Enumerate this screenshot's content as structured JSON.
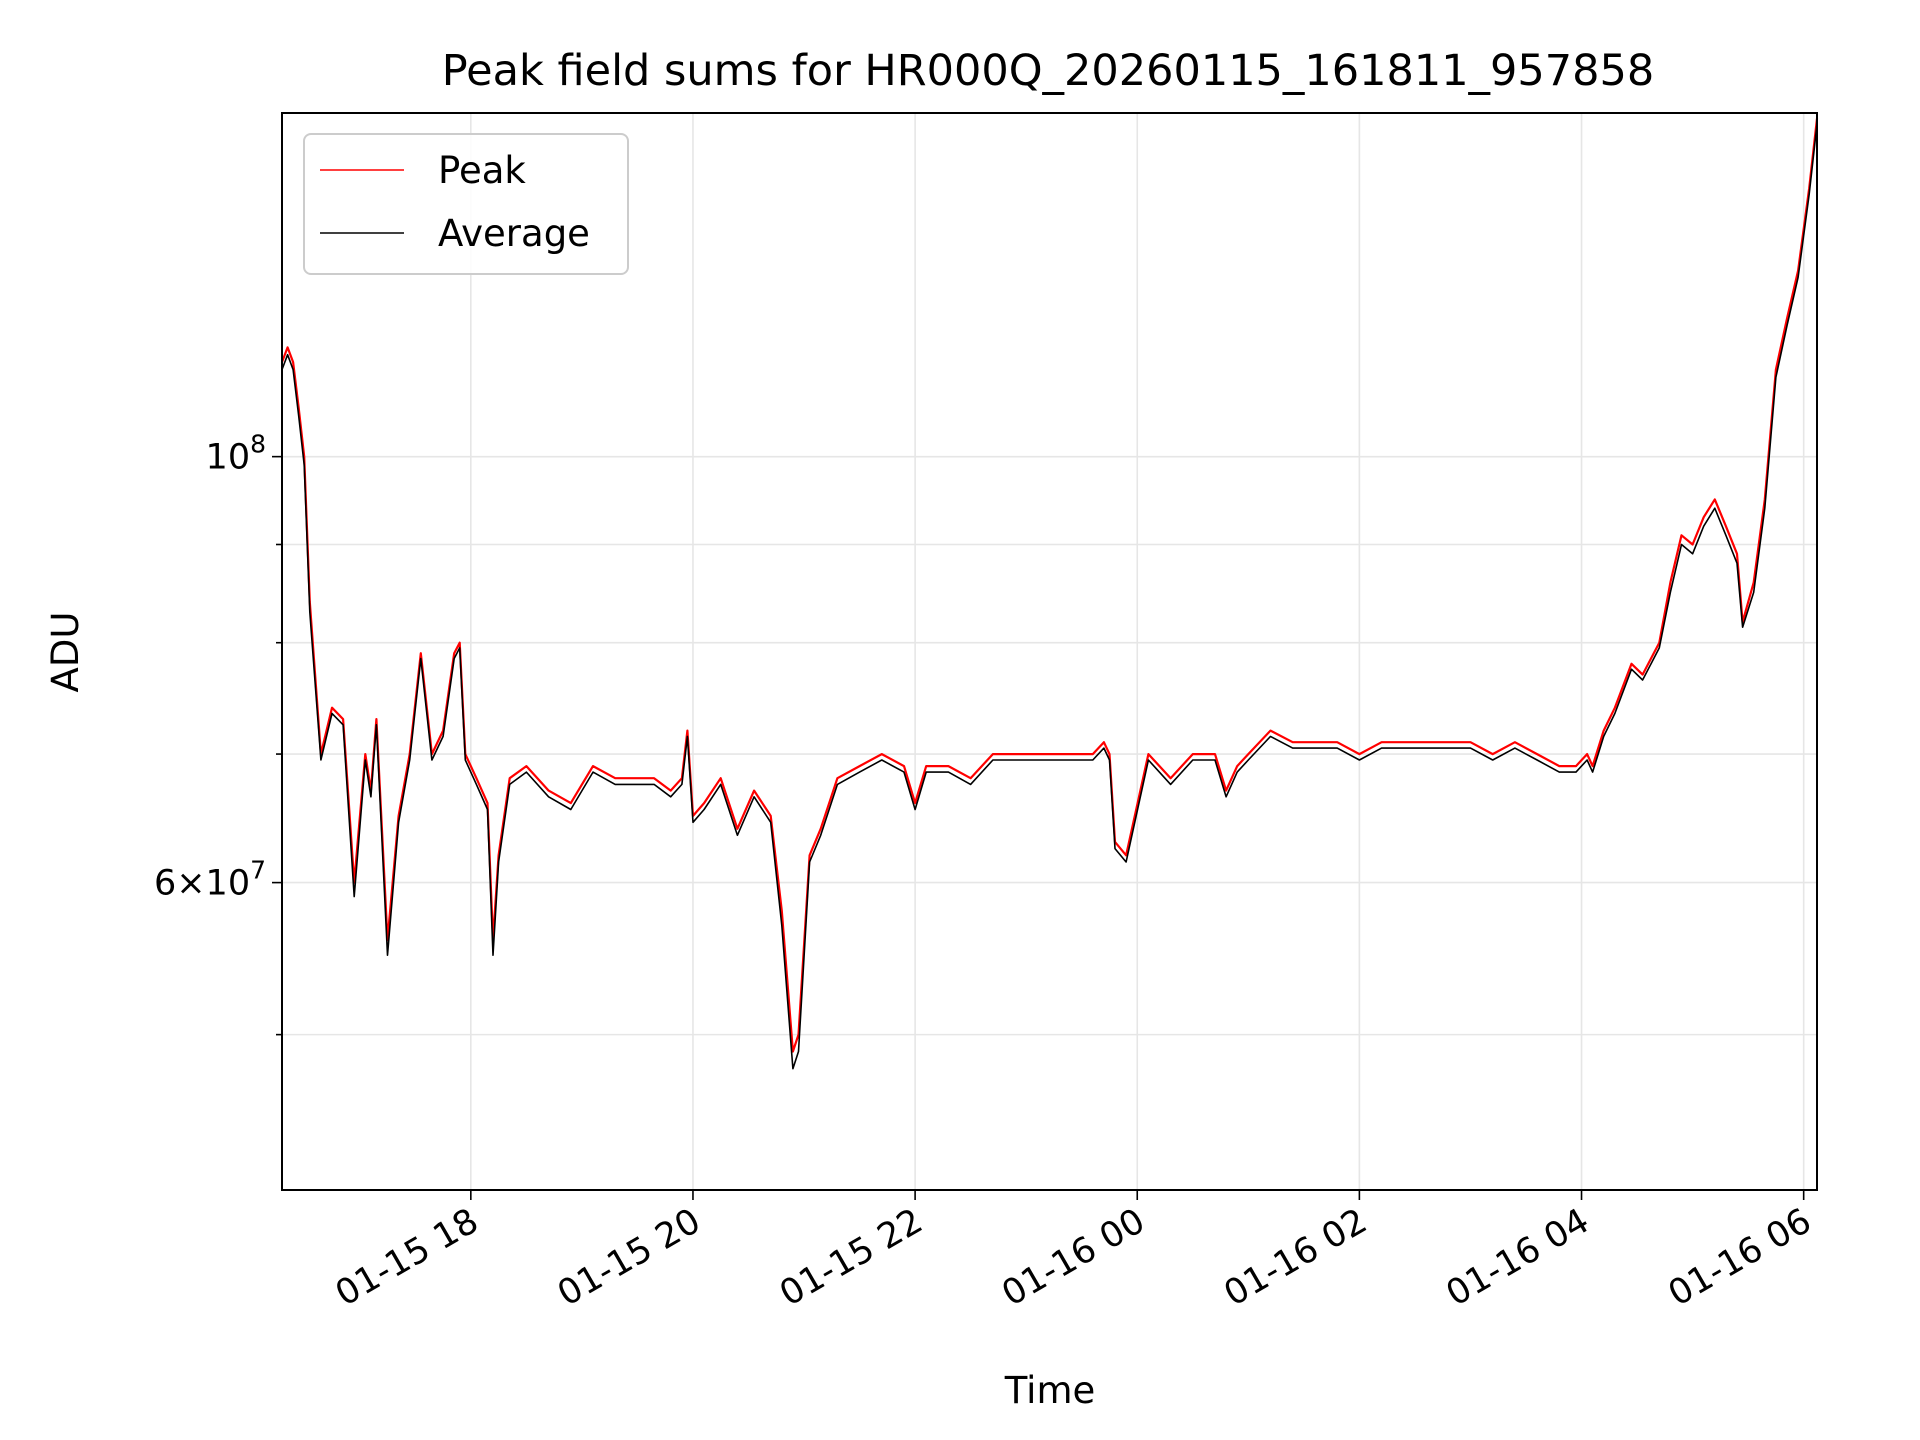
{
  "chart_data": {
    "type": "line",
    "title": "Peak field sums for HR000Q_20260115_161811_957858",
    "xlabel": "Time",
    "ylabel": "ADU",
    "yscale": "log",
    "ylim": [
      41500000,
      151000000
    ],
    "xlim": [
      16.3,
      30.12
    ],
    "x_unit": "hours since 2026-01-15 00:00",
    "x_ticks": [
      {
        "x": 18,
        "label": "01-15 18"
      },
      {
        "x": 20,
        "label": "01-15 20"
      },
      {
        "x": 22,
        "label": "01-15 22"
      },
      {
        "x": 24,
        "label": "01-16 00"
      },
      {
        "x": 26,
        "label": "01-16 02"
      },
      {
        "x": 28,
        "label": "01-16 04"
      },
      {
        "x": 30,
        "label": "01-16 06"
      }
    ],
    "y_major_ticks": [
      {
        "y": 100000000,
        "base": "10",
        "exp": "8",
        "mult": ""
      },
      {
        "y": 60000000,
        "base": "10",
        "exp": "7",
        "mult": "6"
      }
    ],
    "y_minor_ticks": [
      50000000,
      70000000,
      80000000,
      90000000,
      200000000
    ],
    "grid": true,
    "legend": {
      "position": "top-left",
      "entries": [
        {
          "name": "Peak",
          "color": "#ff0000"
        },
        {
          "name": "Average",
          "color": "#000000"
        }
      ]
    },
    "series": [
      {
        "name": "Peak",
        "color": "#ff0000",
        "x": [
          16.3,
          16.35,
          16.4,
          16.45,
          16.5,
          16.55,
          16.65,
          16.75,
          16.85,
          16.95,
          17.05,
          17.1,
          17.15,
          17.25,
          17.35,
          17.45,
          17.55,
          17.65,
          17.75,
          17.85,
          17.9,
          17.95,
          18.05,
          18.15,
          18.2,
          18.25,
          18.35,
          18.5,
          18.7,
          18.9,
          19.1,
          19.3,
          19.5,
          19.65,
          19.8,
          19.9,
          19.95,
          20.0,
          20.1,
          20.25,
          20.4,
          20.55,
          20.7,
          20.8,
          20.9,
          20.95,
          21.05,
          21.15,
          21.3,
          21.5,
          21.7,
          21.9,
          22.0,
          22.1,
          22.3,
          22.5,
          22.7,
          22.9,
          23.1,
          23.3,
          23.5,
          23.6,
          23.7,
          23.75,
          23.8,
          23.9,
          24.1,
          24.3,
          24.5,
          24.7,
          24.8,
          24.9,
          25.0,
          25.2,
          25.4,
          25.6,
          25.8,
          26.0,
          26.2,
          26.4,
          26.6,
          26.8,
          27.0,
          27.2,
          27.4,
          27.6,
          27.8,
          27.95,
          28.05,
          28.1,
          28.2,
          28.3,
          28.45,
          28.55,
          28.7,
          28.8,
          28.9,
          29.0,
          29.1,
          29.2,
          29.3,
          29.4,
          29.45,
          29.55,
          29.65,
          29.75,
          29.85,
          29.95,
          30.05,
          30.12
        ],
        "y": [
          112000000,
          114000000,
          112000000,
          106000000,
          100000000,
          84000000,
          70000000,
          74000000,
          73000000,
          60000000,
          70000000,
          67000000,
          73000000,
          56000000,
          65000000,
          70000000,
          79000000,
          70000000,
          72000000,
          79000000,
          80000000,
          70000000,
          68000000,
          66000000,
          56000000,
          62000000,
          68000000,
          69000000,
          67000000,
          66000000,
          69000000,
          68000000,
          68000000,
          68000000,
          67000000,
          68000000,
          72000000,
          65000000,
          66000000,
          68000000,
          64000000,
          67000000,
          65000000,
          58000000,
          49000000,
          50000000,
          62000000,
          64000000,
          68000000,
          69000000,
          70000000,
          69000000,
          66000000,
          69000000,
          69000000,
          68000000,
          70000000,
          70000000,
          70000000,
          70000000,
          70000000,
          70000000,
          71000000,
          70000000,
          63000000,
          62000000,
          70000000,
          68000000,
          70000000,
          70000000,
          67000000,
          69000000,
          70000000,
          72000000,
          71000000,
          71000000,
          71000000,
          70000000,
          71000000,
          71000000,
          71000000,
          71000000,
          71000000,
          70000000,
          71000000,
          70000000,
          69000000,
          69000000,
          70000000,
          69000000,
          72000000,
          74000000,
          78000000,
          77000000,
          80000000,
          86000000,
          91000000,
          90000000,
          93000000,
          95000000,
          92000000,
          89000000,
          82000000,
          86000000,
          95000000,
          111000000,
          118000000,
          125000000,
          138000000,
          150000000
        ]
      },
      {
        "name": "Average",
        "color": "#000000",
        "x": [
          16.3,
          16.35,
          16.4,
          16.45,
          16.5,
          16.55,
          16.65,
          16.75,
          16.85,
          16.95,
          17.05,
          17.1,
          17.15,
          17.25,
          17.35,
          17.45,
          17.55,
          17.65,
          17.75,
          17.85,
          17.9,
          17.95,
          18.05,
          18.15,
          18.2,
          18.25,
          18.35,
          18.5,
          18.7,
          18.9,
          19.1,
          19.3,
          19.5,
          19.65,
          19.8,
          19.9,
          19.95,
          20.0,
          20.1,
          20.25,
          20.4,
          20.55,
          20.7,
          20.8,
          20.9,
          20.95,
          21.05,
          21.15,
          21.3,
          21.5,
          21.7,
          21.9,
          22.0,
          22.1,
          22.3,
          22.5,
          22.7,
          22.9,
          23.1,
          23.3,
          23.5,
          23.6,
          23.7,
          23.75,
          23.8,
          23.9,
          24.1,
          24.3,
          24.5,
          24.7,
          24.8,
          24.9,
          25.0,
          25.2,
          25.4,
          25.6,
          25.8,
          26.0,
          26.2,
          26.4,
          26.6,
          26.8,
          27.0,
          27.2,
          27.4,
          27.6,
          27.8,
          27.95,
          28.05,
          28.1,
          28.2,
          28.3,
          28.45,
          28.55,
          28.7,
          28.8,
          28.9,
          29.0,
          29.1,
          29.2,
          29.3,
          29.4,
          29.45,
          29.55,
          29.65,
          29.75,
          29.85,
          29.95,
          30.05,
          30.12
        ],
        "y": [
          111000000,
          113000000,
          111000000,
          105000000,
          99000000,
          83000000,
          69500000,
          73500000,
          72500000,
          59000000,
          69500000,
          66500000,
          72500000,
          55000000,
          64500000,
          69500000,
          78500000,
          69500000,
          71500000,
          78500000,
          79500000,
          69500000,
          67500000,
          65500000,
          55000000,
          61500000,
          67500000,
          68500000,
          66500000,
          65500000,
          68500000,
          67500000,
          67500000,
          67500000,
          66500000,
          67500000,
          71500000,
          64500000,
          65500000,
          67500000,
          63500000,
          66500000,
          64500000,
          57000000,
          48000000,
          49000000,
          61500000,
          63500000,
          67500000,
          68500000,
          69500000,
          68500000,
          65500000,
          68500000,
          68500000,
          67500000,
          69500000,
          69500000,
          69500000,
          69500000,
          69500000,
          69500000,
          70500000,
          69500000,
          62500000,
          61500000,
          69500000,
          67500000,
          69500000,
          69500000,
          66500000,
          68500000,
          69500000,
          71500000,
          70500000,
          70500000,
          70500000,
          69500000,
          70500000,
          70500000,
          70500000,
          70500000,
          70500000,
          69500000,
          70500000,
          69500000,
          68500000,
          68500000,
          69500000,
          68500000,
          71500000,
          73500000,
          77500000,
          76500000,
          79500000,
          85000000,
          90000000,
          89000000,
          92000000,
          94000000,
          91000000,
          88000000,
          81500000,
          85000000,
          94000000,
          110000000,
          117000000,
          124000000,
          137000000,
          149000000
        ]
      }
    ]
  }
}
